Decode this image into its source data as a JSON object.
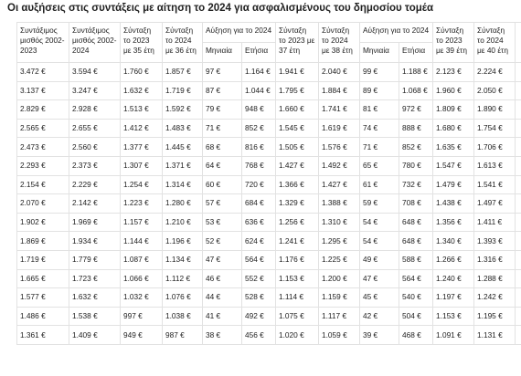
{
  "title": "Οι αυξήσεις στις συντάξεις με αίτηση το 2024 για ασφαλισμένους του δημοσίου τομέα",
  "table": {
    "header_top": [
      "Συντάξιμος μισθός 2002-2023",
      "Συντάξιμος μισθός 2002-2024",
      "Σύνταξη το 2023 με 35 έτη",
      "Σύνταξη το 2024 με 36 έτη",
      "Αύξηση για το 2024",
      "Σύνταξη το 2023 με 37 έτη",
      "Σύνταξη το 2024 με 38 έτη",
      "Αύξηση για το 2024",
      "Σύνταξη το 2023 με 39 έτη",
      "Σύνταξη το 2024 με 40 έτη"
    ],
    "header_sub": [
      "Μηνιαία",
      "Ετήσια",
      "Μηνιαία",
      "Ετήσια"
    ],
    "rows": [
      [
        "3.472 €",
        "3.594 €",
        "1.760 €",
        "1.857 €",
        "97 €",
        "1.164 €",
        "1.941 €",
        "2.040 €",
        "99 €",
        "1.188 €",
        "2.123 €",
        "2.224 €"
      ],
      [
        "3.137 €",
        "3.247 €",
        "1.632 €",
        "1.719 €",
        "87 €",
        "1.044 €",
        "1.795 €",
        "1.884 €",
        "89 €",
        "1.068 €",
        "1.960 €",
        "2.050 €"
      ],
      [
        "2.829 €",
        "2.928 €",
        "1.513 €",
        "1.592 €",
        "79 €",
        "948 €",
        "1.660 €",
        "1.741 €",
        "81 €",
        "972 €",
        "1.809 €",
        "1.890 €"
      ],
      [
        "2.565 €",
        "2.655 €",
        "1.412 €",
        "1.483 €",
        "71 €",
        "852 €",
        "1.545 €",
        "1.619 €",
        "74 €",
        "888 €",
        "1.680 €",
        "1.754 €"
      ],
      [
        "2.473 €",
        "2.560 €",
        "1.377 €",
        "1.445 €",
        "68 €",
        "816 €",
        "1.505 €",
        "1.576 €",
        "71 €",
        "852 €",
        "1.635 €",
        "1.706 €"
      ],
      [
        "2.293 €",
        "2.373 €",
        "1.307 €",
        "1.371 €",
        "64 €",
        "768 €",
        "1.427 €",
        "1.492 €",
        "65 €",
        "780 €",
        "1.547 €",
        "1.613 €"
      ],
      [
        "2.154 €",
        "2.229 €",
        "1.254 €",
        "1.314 €",
        "60 €",
        "720 €",
        "1.366 €",
        "1.427 €",
        "61 €",
        "732 €",
        "1.479 €",
        "1.541 €"
      ],
      [
        "2.070 €",
        "2.142 €",
        "1.223 €",
        "1.280 €",
        "57 €",
        "684 €",
        "1.329 €",
        "1.388 €",
        "59 €",
        "708 €",
        "1.438 €",
        "1.497 €"
      ],
      [
        "1.902 €",
        "1.969 €",
        "1.157 €",
        "1.210 €",
        "53 €",
        "636 €",
        "1.256 €",
        "1.310 €",
        "54 €",
        "648 €",
        "1.356 €",
        "1.411 €"
      ],
      [
        "1.869 €",
        "1.934 €",
        "1.144 €",
        "1.196 €",
        "52 €",
        "624 €",
        "1.241 €",
        "1.295 €",
        "54 €",
        "648 €",
        "1.340 €",
        "1.393 €"
      ],
      [
        "1.719 €",
        "1.779 €",
        "1.087 €",
        "1.134 €",
        "47 €",
        "564 €",
        "1.176 €",
        "1.225 €",
        "49 €",
        "588 €",
        "1.266 €",
        "1.316 €"
      ],
      [
        "1.665 €",
        "1.723 €",
        "1.066 €",
        "1.112 €",
        "46 €",
        "552 €",
        "1.153 €",
        "1.200 €",
        "47 €",
        "564 €",
        "1.240 €",
        "1.288 €"
      ],
      [
        "1.577 €",
        "1.632 €",
        "1.032 €",
        "1.076 €",
        "44 €",
        "528 €",
        "1.114 €",
        "1.159 €",
        "45 €",
        "540 €",
        "1.197 €",
        "1.242 €"
      ],
      [
        "1.486 €",
        "1.538 €",
        "997 €",
        "1.038 €",
        "41 €",
        "492 €",
        "1.075 €",
        "1.117 €",
        "42 €",
        "504 €",
        "1.153 €",
        "1.195 €"
      ],
      [
        "1.361 €",
        "1.409 €",
        "949 €",
        "987 €",
        "38 €",
        "456 €",
        "1.020 €",
        "1.059 €",
        "39 €",
        "468 €",
        "1.091 €",
        "1.131 €"
      ]
    ]
  }
}
